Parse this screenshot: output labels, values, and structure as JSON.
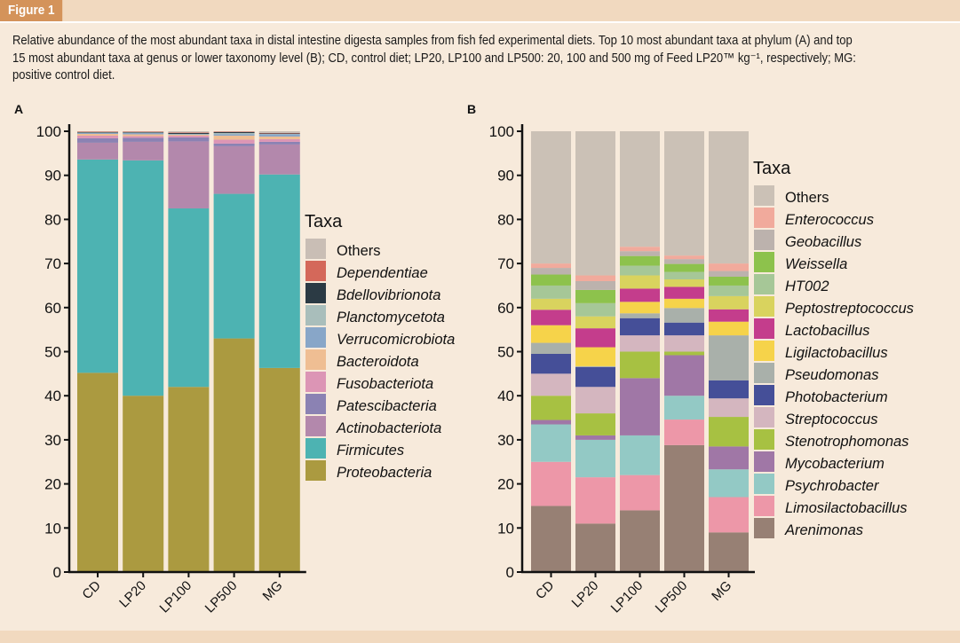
{
  "figure_label": "Figure 1",
  "caption_lines": [
    "Relative abundance of the most abundant taxa in distal intestine digesta samples from fish fed experimental diets. Top 10 most abundant taxa at phylum (A) and top",
    "15 most abundant taxa at genus or lower taxonomy level (B); CD, control diet; LP20, LP100 and LP500: 20, 100 and 500 mg of Feed LP20™ kg⁻¹, respectively; MG:",
    "positive control diet."
  ],
  "chart_data": [
    {
      "panel": "A",
      "type": "bar",
      "stacked": true,
      "title": "",
      "xlabel": "",
      "ylabel": "",
      "ylim": [
        0,
        100
      ],
      "yticks": [
        0,
        10,
        20,
        30,
        40,
        50,
        60,
        70,
        80,
        90,
        100
      ],
      "categories": [
        "CD",
        "LP20",
        "LP100",
        "LP500",
        "MG"
      ],
      "legend_title": "Taxa",
      "legend_position": "right",
      "series": [
        {
          "name": "Proteobacteria",
          "italic": true,
          "color": "#ab9a40",
          "values": [
            45.2,
            40.0,
            42.0,
            53.0,
            46.3
          ]
        },
        {
          "name": "Firmicutes",
          "italic": true,
          "color": "#4db3b2",
          "values": [
            48.4,
            53.4,
            40.5,
            32.8,
            43.9
          ]
        },
        {
          "name": "Actinobacteriota",
          "italic": true,
          "color": "#b388ac",
          "values": [
            3.8,
            4.2,
            15.2,
            10.8,
            6.8
          ]
        },
        {
          "name": "Patescibacteria",
          "italic": true,
          "color": "#8b82b3",
          "values": [
            1.0,
            0.9,
            0.9,
            0.6,
            0.6
          ]
        },
        {
          "name": "Fusobacteriota",
          "italic": true,
          "color": "#dc95b5",
          "values": [
            0.6,
            0.4,
            0.4,
            0.9,
            0.6
          ]
        },
        {
          "name": "Bacteroidota",
          "italic": true,
          "color": "#efbe93",
          "values": [
            0.4,
            0.4,
            0.2,
            0.9,
            0.6
          ]
        },
        {
          "name": "Verrucomicrobiota",
          "italic": true,
          "color": "#88a6c8",
          "values": [
            0.2,
            0.3,
            0.1,
            0.3,
            0.5
          ]
        },
        {
          "name": "Planctomycetota",
          "italic": true,
          "color": "#a9bebb",
          "values": [
            0.1,
            0.1,
            0.1,
            0.3,
            0.1
          ]
        },
        {
          "name": "Bdellovibrionota",
          "italic": true,
          "color": "#2b3a44",
          "values": [
            0.1,
            0.1,
            0.2,
            0.2,
            0.1
          ]
        },
        {
          "name": "Dependentiae",
          "italic": true,
          "color": "#d4685a",
          "values": [
            0.1,
            0.1,
            0.1,
            0.1,
            0.1
          ]
        },
        {
          "name": "Others",
          "italic": false,
          "color": "#c9beb5",
          "values": [
            0.1,
            0.1,
            0.3,
            0.1,
            0.4
          ]
        }
      ]
    },
    {
      "panel": "B",
      "type": "bar",
      "stacked": true,
      "title": "",
      "xlabel": "",
      "ylabel": "",
      "ylim": [
        0,
        100
      ],
      "yticks": [
        0,
        10,
        20,
        30,
        40,
        50,
        60,
        70,
        80,
        90,
        100
      ],
      "categories": [
        "CD",
        "LP20",
        "LP100",
        "LP500",
        "MG"
      ],
      "legend_title": "Taxa",
      "legend_position": "right",
      "series": [
        {
          "name": "Arenimonas",
          "italic": true,
          "color": "#978074",
          "values": [
            15.0,
            11.0,
            14.0,
            28.8,
            9.0
          ]
        },
        {
          "name": "Limosilactobacillus",
          "italic": true,
          "color": "#ed97a8",
          "values": [
            10.0,
            10.5,
            8.0,
            5.8,
            8.0
          ]
        },
        {
          "name": "Psychrobacter",
          "italic": true,
          "color": "#93c9c5",
          "values": [
            8.5,
            8.5,
            9.0,
            5.4,
            6.3
          ]
        },
        {
          "name": "Mycobacterium",
          "italic": true,
          "color": "#a077a6",
          "values": [
            1.0,
            1.0,
            13.0,
            9.2,
            5.2
          ]
        },
        {
          "name": "Stenotrophomonas",
          "italic": true,
          "color": "#a7c142",
          "values": [
            5.5,
            5.0,
            6.0,
            0.8,
            6.7
          ]
        },
        {
          "name": "Streptococcus",
          "italic": true,
          "color": "#d4b6bf",
          "values": [
            5.0,
            6.0,
            3.7,
            3.7,
            4.2
          ]
        },
        {
          "name": "Photobacterium",
          "italic": true,
          "color": "#454f98",
          "values": [
            4.5,
            4.5,
            3.9,
            2.9,
            4.1
          ]
        },
        {
          "name": "Pseudomonas",
          "italic": true,
          "color": "#a9b0aa",
          "values": [
            2.5,
            0.2,
            1.1,
            3.3,
            10.2
          ]
        },
        {
          "name": "Ligilactobacillus",
          "italic": true,
          "color": "#f6d34a",
          "values": [
            4.0,
            4.3,
            2.6,
            2.1,
            3.1
          ]
        },
        {
          "name": "Lactobacillus",
          "italic": true,
          "color": "#c43d8c",
          "values": [
            3.5,
            4.3,
            3.0,
            2.7,
            2.8
          ]
        },
        {
          "name": "Peptostreptococcus",
          "italic": true,
          "color": "#d9d35e",
          "values": [
            2.5,
            2.7,
            3.0,
            1.7,
            3.0
          ]
        },
        {
          "name": "HT002",
          "italic": true,
          "color": "#a6c797",
          "values": [
            3.0,
            3.0,
            2.2,
            1.7,
            2.4
          ]
        },
        {
          "name": "Weissella",
          "italic": true,
          "color": "#8dc24c",
          "values": [
            2.5,
            3.0,
            2.2,
            1.8,
            2.0
          ]
        },
        {
          "name": "Geobacillus",
          "italic": true,
          "color": "#bcb2ad",
          "values": [
            1.5,
            2.0,
            1.1,
            1.1,
            1.3
          ]
        },
        {
          "name": "Enterococcus",
          "italic": true,
          "color": "#f1aa9c",
          "values": [
            1.0,
            1.3,
            1.0,
            0.8,
            1.7
          ]
        },
        {
          "name": "Others",
          "italic": false,
          "color": "#cbc1b6",
          "values": [
            30.0,
            32.7,
            26.2,
            28.2,
            30.0
          ]
        }
      ]
    }
  ]
}
